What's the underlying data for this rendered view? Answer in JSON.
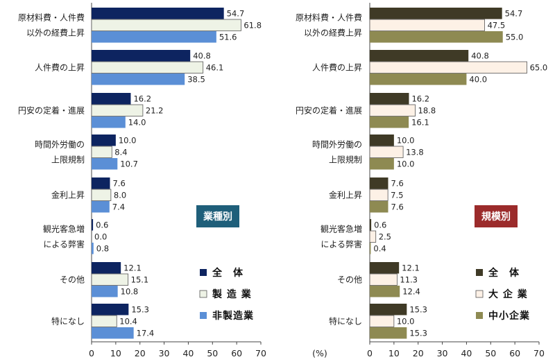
{
  "chart_data": [
    {
      "type": "bar",
      "orientation": "horizontal",
      "badge": "業種別",
      "badge_color": "#1f5f7a",
      "categories": [
        [
          "原材料費・人件費",
          "以外の経費上昇"
        ],
        [
          "人件費の上昇"
        ],
        [
          "円安の定着・進展"
        ],
        [
          "時間外労働の",
          "上限規制"
        ],
        [
          "金利上昇"
        ],
        [
          "観光客急増",
          "による弊害"
        ],
        [
          "その他"
        ],
        [
          "特になし"
        ]
      ],
      "series": [
        {
          "name": "全　体",
          "color": "#0d2460",
          "values": [
            54.7,
            40.8,
            16.2,
            10.0,
            7.6,
            0.6,
            12.1,
            15.3
          ]
        },
        {
          "name": "製 造 業",
          "color": "#eef3e6",
          "values": [
            61.8,
            46.1,
            21.2,
            8.4,
            8.0,
            0.0,
            15.1,
            10.4
          ]
        },
        {
          "name": "非製造業",
          "color": "#5b8fd6",
          "values": [
            51.6,
            38.5,
            14.0,
            10.7,
            7.4,
            0.8,
            10.8,
            17.4
          ]
        }
      ],
      "xlim": [
        0,
        70
      ],
      "xticks": [
        0,
        10,
        20,
        30,
        40,
        50,
        60,
        70
      ],
      "legend_position": "bottom-right"
    },
    {
      "type": "bar",
      "orientation": "horizontal",
      "badge": "規模別",
      "badge_color": "#9b2b2b",
      "categories": [
        [
          "原材料費・人件費",
          "以外の経費上昇"
        ],
        [
          "人件費の上昇"
        ],
        [
          "円安の定着・進展"
        ],
        [
          "時間外労働の",
          "上限規制"
        ],
        [
          "金利上昇"
        ],
        [
          "観光客急増",
          "による弊害"
        ],
        [
          "その他"
        ],
        [
          "特になし"
        ]
      ],
      "series": [
        {
          "name": "全　体",
          "color": "#3f3a26",
          "values": [
            54.7,
            40.8,
            16.2,
            10.0,
            7.6,
            0.6,
            12.1,
            15.3
          ]
        },
        {
          "name": "大 企 業",
          "color": "#fdf1e6",
          "values": [
            47.5,
            65.0,
            18.8,
            13.8,
            7.5,
            2.5,
            11.3,
            10.0
          ]
        },
        {
          "name": "中小企業",
          "color": "#8e8a52",
          "values": [
            55.0,
            40.0,
            16.1,
            10.0,
            7.6,
            0.4,
            12.4,
            15.3
          ]
        }
      ],
      "xlim": [
        0,
        70
      ],
      "xticks": [
        0,
        10,
        20,
        30,
        40,
        50,
        60,
        70
      ],
      "xlabel": "(%)",
      "legend_position": "bottom-right"
    }
  ]
}
